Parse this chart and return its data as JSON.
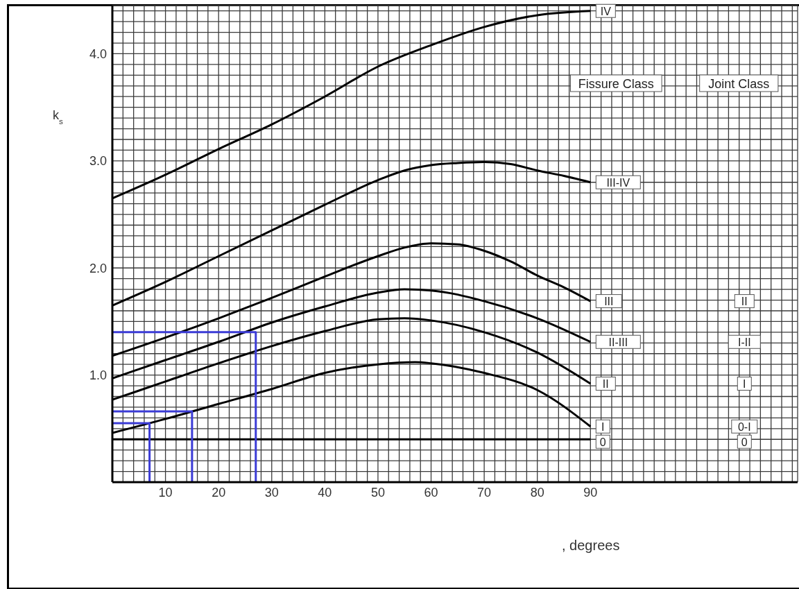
{
  "chart_data": {
    "type": "line",
    "ylabel": "k$_{s}$",
    "xlabel": ", degrees",
    "xlim": [
      0,
      129
    ],
    "ylim": [
      0,
      4.45
    ],
    "xticks": [
      {
        "value": 0,
        "label": null
      },
      {
        "value": 2,
        "label": null
      },
      {
        "value": 4,
        "label": null
      },
      {
        "value": 6,
        "label": null
      },
      {
        "value": 8,
        "label": null
      },
      10,
      {
        "value": 12,
        "label": null
      },
      {
        "value": 14,
        "label": null
      },
      {
        "value": 16,
        "label": null
      },
      {
        "value": 18,
        "label": null
      },
      20,
      {
        "value": 22,
        "label": null
      },
      {
        "value": 24,
        "label": null
      },
      {
        "value": 26,
        "label": null
      },
      {
        "value": 28,
        "label": null
      },
      30,
      {
        "value": 32,
        "label": null
      },
      {
        "value": 34,
        "label": null
      },
      {
        "value": 36,
        "label": null
      },
      {
        "value": 38,
        "label": null
      },
      40,
      {
        "value": 42,
        "label": null
      },
      {
        "value": 44,
        "label": null
      },
      {
        "value": 46,
        "label": null
      },
      {
        "value": 48,
        "label": null
      },
      50,
      {
        "value": 52,
        "label": null
      },
      {
        "value": 54,
        "label": null
      },
      {
        "value": 56,
        "label": null
      },
      {
        "value": 58,
        "label": null
      },
      60,
      {
        "value": 62,
        "label": null
      },
      {
        "value": 64,
        "label": null
      },
      {
        "value": 66,
        "label": null
      },
      {
        "value": 68,
        "label": null
      },
      70,
      {
        "value": 72,
        "label": null
      },
      {
        "value": 74,
        "label": null
      },
      {
        "value": 76,
        "label": null
      },
      {
        "value": 78,
        "label": null
      },
      80,
      {
        "value": 82,
        "label": null
      },
      {
        "value": 84,
        "label": null
      },
      {
        "value": 86,
        "label": null
      },
      {
        "value": 88,
        "label": null
      },
      90,
      {
        "value": 92,
        "label": null
      },
      {
        "value": 94,
        "label": null
      },
      {
        "value": 96,
        "label": null
      },
      {
        "value": 98,
        "label": null
      },
      {
        "value": 100,
        "label": null
      },
      {
        "value": 102,
        "label": null
      },
      {
        "value": 104,
        "label": null
      },
      {
        "value": 106,
        "label": null
      },
      {
        "value": 108,
        "label": null
      },
      {
        "value": 110,
        "label": null
      },
      {
        "value": 112,
        "label": null
      },
      {
        "value": 114,
        "label": null
      },
      {
        "value": 116,
        "label": null
      },
      {
        "value": 118,
        "label": null
      },
      {
        "value": 120,
        "label": null
      },
      {
        "value": 122,
        "label": null
      },
      {
        "value": 124,
        "label": null
      },
      {
        "value": 126,
        "label": null
      },
      {
        "value": 128,
        "label": null
      }
    ],
    "yticks": [
      {
        "value": 0,
        "label": null
      },
      {
        "value": 0.1,
        "label": null
      },
      {
        "value": 0.2,
        "label": null
      },
      {
        "value": 0.3,
        "label": null
      },
      {
        "value": 0.4,
        "label": null
      },
      {
        "value": 0.5,
        "label": null
      },
      {
        "value": 0.6,
        "label": null
      },
      {
        "value": 0.7,
        "label": null
      },
      {
        "value": 0.8,
        "label": null
      },
      {
        "value": 0.9,
        "label": null
      },
      {
        "value": 1,
        "label": "1.0"
      },
      {
        "value": 1.1,
        "label": null
      },
      {
        "value": 1.2,
        "label": null
      },
      {
        "value": 1.3,
        "label": null
      },
      {
        "value": 1.4,
        "label": null
      },
      {
        "value": 1.5,
        "label": null
      },
      {
        "value": 1.6,
        "label": null
      },
      {
        "value": 1.7,
        "label": null
      },
      {
        "value": 1.8,
        "label": null
      },
      {
        "value": 1.9,
        "label": null
      },
      {
        "value": 2,
        "label": "2.0"
      },
      {
        "value": 2.1,
        "label": null
      },
      {
        "value": 2.2,
        "label": null
      },
      {
        "value": 2.3,
        "label": null
      },
      {
        "value": 2.4,
        "label": null
      },
      {
        "value": 2.5,
        "label": null
      },
      {
        "value": 2.6,
        "label": null
      },
      {
        "value": 2.7,
        "label": null
      },
      {
        "value": 2.8,
        "label": null
      },
      {
        "value": 2.9,
        "label": null
      },
      {
        "value": 3,
        "label": "3.0"
      },
      {
        "value": 3.1,
        "label": null
      },
      {
        "value": 3.2,
        "label": null
      },
      {
        "value": 3.3,
        "label": null
      },
      {
        "value": 3.4,
        "label": null
      },
      {
        "value": 3.5,
        "label": null
      },
      {
        "value": 3.6,
        "label": null
      },
      {
        "value": 3.7,
        "label": null
      },
      {
        "value": 3.8,
        "label": null
      },
      {
        "value": 3.9,
        "label": null
      },
      {
        "value": 4,
        "label": "4.0"
      },
      {
        "value": 4.1,
        "label": null
      },
      {
        "value": 4.2,
        "label": null
      },
      {
        "value": 4.3,
        "label": null
      },
      {
        "value": 4.4,
        "label": null
      }
    ],
    "grid": true,
    "marker": "none",
    "series": [
      {
        "name": "IV",
        "color": "#000000",
        "x": [
          0,
          10,
          20,
          30,
          40,
          50,
          60,
          70,
          80,
          90
        ],
        "values": [
          2.65,
          2.87,
          3.11,
          3.34,
          3.6,
          3.88,
          4.08,
          4.25,
          4.36,
          4.4
        ]
      },
      {
        "name": "III-IV",
        "color": "#000000",
        "x": [
          0,
          10,
          20,
          30,
          40,
          50,
          55,
          60,
          65,
          70,
          75,
          80,
          85,
          90
        ],
        "values": [
          1.65,
          1.87,
          2.11,
          2.35,
          2.59,
          2.82,
          2.91,
          2.96,
          2.98,
          2.99,
          2.97,
          2.91,
          2.86,
          2.8
        ]
      },
      {
        "name": "III",
        "color": "#000000",
        "x": [
          0,
          10,
          20,
          30,
          40,
          50,
          55,
          60,
          65,
          70,
          75,
          80,
          85,
          90
        ],
        "values": [
          1.18,
          1.35,
          1.53,
          1.72,
          1.92,
          2.11,
          2.19,
          2.23,
          2.22,
          2.16,
          2.06,
          1.93,
          1.82,
          1.69
        ]
      },
      {
        "name": "II-III",
        "color": "#000000",
        "x": [
          0,
          10,
          20,
          30,
          40,
          50,
          55,
          60,
          70,
          80,
          90
        ],
        "values": [
          0.97,
          1.14,
          1.31,
          1.49,
          1.64,
          1.77,
          1.8,
          1.79,
          1.69,
          1.53,
          1.31
        ]
      },
      {
        "name": "II",
        "color": "#000000",
        "x": [
          0,
          10,
          20,
          30,
          40,
          50,
          55,
          60,
          70,
          80,
          90
        ],
        "values": [
          0.77,
          0.94,
          1.11,
          1.27,
          1.41,
          1.52,
          1.53,
          1.51,
          1.4,
          1.21,
          0.92
        ]
      },
      {
        "name": "I",
        "color": "#000000",
        "x": [
          0,
          10,
          20,
          30,
          40,
          50,
          57,
          60,
          70,
          80,
          90
        ],
        "values": [
          0.46,
          0.59,
          0.73,
          0.87,
          1.02,
          1.1,
          1.12,
          1.11,
          1.02,
          0.86,
          0.52
        ]
      },
      {
        "name": "0",
        "color": "#000000",
        "x": [
          0,
          90
        ],
        "values": [
          0.4,
          0.4
        ]
      },
      {
        "color": "#3b3bd6",
        "x": [
          0,
          27,
          27
        ],
        "values": [
          1.4,
          1.4,
          0
        ]
      },
      {
        "color": "#3b3bd6",
        "x": [
          0,
          15,
          15
        ],
        "values": [
          0.66,
          0.66,
          0
        ]
      },
      {
        "color": "#3b3bd6",
        "x": [
          0,
          7,
          7
        ],
        "values": [
          0.55,
          0.55,
          0
        ]
      }
    ],
    "annotations": [
      "Fissure Class",
      "Joint Class",
      "II",
      "I-II",
      "I",
      "0-I",
      "0"
    ]
  }
}
